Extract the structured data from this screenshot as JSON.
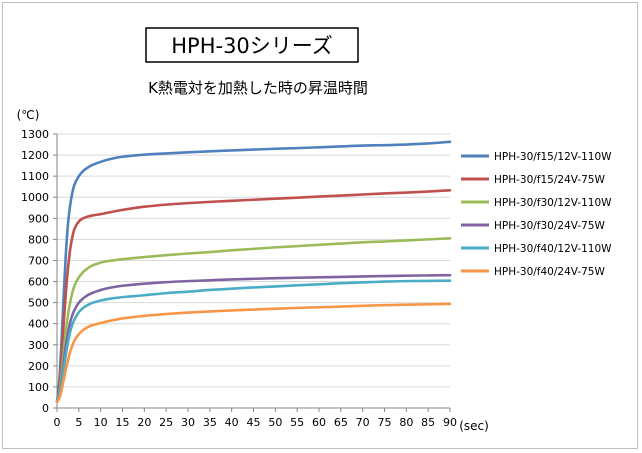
{
  "chart_data": {
    "type": "line",
    "title": "HPH-30シリーズ",
    "subtitle": "K熱電対を加熱した時の昇温時間",
    "ylabel": "(℃)",
    "xlabel": "(sec)",
    "xlim": [
      0,
      90
    ],
    "ylim": [
      0,
      1300
    ],
    "xticks": [
      0,
      5,
      10,
      15,
      20,
      25,
      30,
      35,
      40,
      45,
      50,
      55,
      60,
      65,
      70,
      75,
      80,
      85,
      90
    ],
    "yticks": [
      0,
      100,
      200,
      300,
      400,
      500,
      600,
      700,
      800,
      900,
      1000,
      1100,
      1200,
      1300
    ],
    "grid": "horizontal",
    "legend_position": "right",
    "x": [
      0,
      0.5,
      1,
      1.5,
      2,
      2.5,
      3,
      3.5,
      4,
      5,
      6,
      7,
      8,
      10,
      12,
      15,
      20,
      25,
      30,
      35,
      40,
      45,
      50,
      55,
      60,
      65,
      70,
      75,
      80,
      85,
      90
    ],
    "series": [
      {
        "name": "HPH-30/f15/12V-110W",
        "color": "#4f81bd",
        "values": [
          30,
          120,
          300,
          520,
          720,
          870,
          960,
          1020,
          1060,
          1100,
          1125,
          1140,
          1152,
          1168,
          1180,
          1192,
          1202,
          1208,
          1213,
          1218,
          1222,
          1226,
          1230,
          1233,
          1237,
          1241,
          1245,
          1247,
          1250,
          1255,
          1263
        ]
      },
      {
        "name": "HPH-30/f15/24V-75W",
        "color": "#c0504d",
        "values": [
          30,
          90,
          220,
          390,
          540,
          660,
          750,
          810,
          850,
          885,
          900,
          908,
          913,
          920,
          928,
          940,
          955,
          965,
          972,
          978,
          983,
          988,
          993,
          998,
          1003,
          1008,
          1013,
          1018,
          1022,
          1027,
          1033
        ]
      },
      {
        "name": "HPH-30/f30/12V-110W",
        "color": "#9bbb59",
        "values": [
          30,
          70,
          150,
          260,
          360,
          440,
          500,
          545,
          580,
          620,
          645,
          662,
          675,
          690,
          698,
          706,
          716,
          725,
          733,
          740,
          748,
          755,
          762,
          768,
          774,
          780,
          786,
          790,
          795,
          800,
          805
        ]
      },
      {
        "name": "HPH-30/f30/24V-75W",
        "color": "#8064a2",
        "values": [
          30,
          60,
          120,
          210,
          290,
          355,
          405,
          440,
          465,
          500,
          520,
          535,
          545,
          560,
          570,
          580,
          590,
          597,
          602,
          606,
          610,
          613,
          616,
          618,
          620,
          622,
          624,
          626,
          628,
          629,
          630
        ]
      },
      {
        "name": "HPH-30/f40/12V-110W",
        "color": "#4bacc6",
        "values": [
          30,
          60,
          110,
          180,
          250,
          310,
          360,
          395,
          420,
          455,
          475,
          488,
          498,
          510,
          518,
          526,
          535,
          545,
          552,
          560,
          566,
          572,
          577,
          582,
          587,
          592,
          596,
          600,
          602,
          603,
          604
        ]
      },
      {
        "name": "HPH-30/f40/24V-75W",
        "color": "#f79646",
        "values": [
          30,
          45,
          80,
          130,
          180,
          225,
          265,
          295,
          320,
          350,
          370,
          383,
          392,
          403,
          413,
          425,
          437,
          446,
          453,
          458,
          463,
          467,
          471,
          475,
          478,
          481,
          485,
          488,
          490,
          492,
          494
        ]
      }
    ]
  }
}
